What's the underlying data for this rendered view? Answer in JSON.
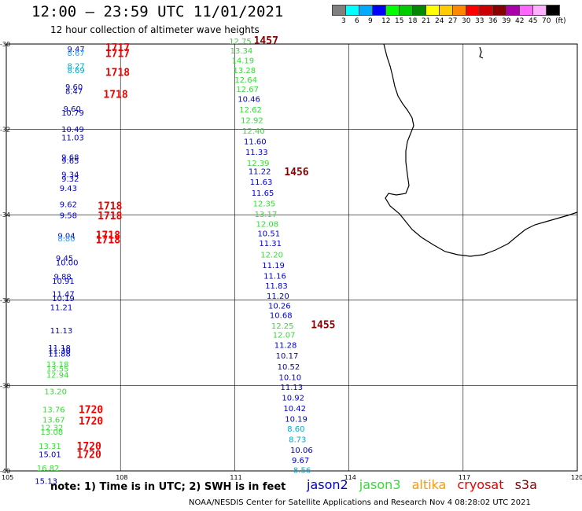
{
  "header": {
    "title": "12:00 – 23:59 UTC 11/01/2021",
    "subtitle": "12 hour collection of altimeter wave heights"
  },
  "legend": {
    "colors": [
      "#808080",
      "#00ffff",
      "#00aaff",
      "#0000ff",
      "#00ff00",
      "#00cc00",
      "#008800",
      "#ffff00",
      "#ffcc00",
      "#ff8800",
      "#ff0000",
      "#cc0000",
      "#880000",
      "#aa00aa",
      "#ff66ff",
      "#ffb0ff",
      "#000000"
    ],
    "labels": [
      "3",
      "6",
      "9",
      "12",
      "15",
      "18",
      "21",
      "24",
      "27",
      "30",
      "33",
      "36",
      "39",
      "42",
      "45",
      "70",
      "(ft)"
    ]
  },
  "map": {
    "lat_ticks": [
      "-30",
      "-32",
      "-34",
      "-36",
      "-38",
      "-40"
    ],
    "lon_ticks": [
      "105",
      "108",
      "111",
      "114",
      "117",
      "120"
    ]
  },
  "mission_colors": {
    "jason2": "#0000cc",
    "jason3": "#33dd33",
    "altika": "#ff9900",
    "cryosat": "#ee0000",
    "s3a": "#880000",
    "cyan": "#00aacc",
    "lightblue": "#3399ff"
  },
  "observations": [
    {
      "text": "9.47",
      "lon": 106.6,
      "lat": -30.18,
      "m": "jason2"
    },
    {
      "text": "8.67",
      "lon": 106.6,
      "lat": -30.28,
      "m": "lightblue"
    },
    {
      "text": "8.27",
      "lon": 106.6,
      "lat": -30.58,
      "m": "cyan"
    },
    {
      "text": "8.69",
      "lon": 106.6,
      "lat": -30.68,
      "m": "cyan"
    },
    {
      "text": "9.60",
      "lon": 106.55,
      "lat": -31.07,
      "m": "jason2"
    },
    {
      "text": "8.47",
      "lon": 106.55,
      "lat": -31.17,
      "m": "jason2"
    },
    {
      "text": "9.60",
      "lon": 106.5,
      "lat": -31.58,
      "m": "jason2"
    },
    {
      "text": "10.79",
      "lon": 106.45,
      "lat": -31.68,
      "m": "jason2"
    },
    {
      "text": "10.49",
      "lon": 106.45,
      "lat": -32.06,
      "m": "jason2"
    },
    {
      "text": "11.03",
      "lon": 106.45,
      "lat": -32.26,
      "m": "jason2"
    },
    {
      "text": "9.68",
      "lon": 106.45,
      "lat": -32.72,
      "m": "jason2"
    },
    {
      "text": "9.65",
      "lon": 106.45,
      "lat": -32.8,
      "m": "jason2"
    },
    {
      "text": "9.34",
      "lon": 106.45,
      "lat": -33.12,
      "m": "jason2"
    },
    {
      "text": "9.32",
      "lon": 106.45,
      "lat": -33.22,
      "m": "jason2"
    },
    {
      "text": "9.43",
      "lon": 106.4,
      "lat": -33.44,
      "m": "jason2"
    },
    {
      "text": "9.62",
      "lon": 106.4,
      "lat": -33.82,
      "m": "jason2"
    },
    {
      "text": "9.58",
      "lon": 106.4,
      "lat": -34.08,
      "m": "jason2"
    },
    {
      "text": "9.04",
      "lon": 106.35,
      "lat": -34.56,
      "m": "jason2"
    },
    {
      "text": "8.80",
      "lon": 106.35,
      "lat": -34.62,
      "m": "lightblue"
    },
    {
      "text": "9.45",
      "lon": 106.3,
      "lat": -35.08,
      "m": "jason2"
    },
    {
      "text": "10.00",
      "lon": 106.3,
      "lat": -35.18,
      "m": "jason2"
    },
    {
      "text": "9.88",
      "lon": 106.25,
      "lat": -35.52,
      "m": "jason2"
    },
    {
      "text": "10.91",
      "lon": 106.2,
      "lat": -35.62,
      "m": "jason2"
    },
    {
      "text": "11.47",
      "lon": 106.2,
      "lat": -35.92,
      "m": "jason2"
    },
    {
      "text": "10.19",
      "lon": 106.2,
      "lat": -36.02,
      "m": "jason2"
    },
    {
      "text": "11.21",
      "lon": 106.15,
      "lat": -36.23,
      "m": "jason2"
    },
    {
      "text": "11.13",
      "lon": 106.15,
      "lat": -36.78,
      "m": "jason2"
    },
    {
      "text": "11.18",
      "lon": 106.1,
      "lat": -37.18,
      "m": "jason2"
    },
    {
      "text": "11.30",
      "lon": 106.1,
      "lat": -37.25,
      "m": "jason2"
    },
    {
      "text": "11.88",
      "lon": 106.1,
      "lat": -37.32,
      "m": "jason2"
    },
    {
      "text": "13.18",
      "lon": 106.05,
      "lat": -37.57,
      "m": "jason3"
    },
    {
      "text": "13.55",
      "lon": 106.05,
      "lat": -37.67,
      "m": "jason3"
    },
    {
      "text": "12.94",
      "lon": 106.05,
      "lat": -37.82,
      "m": "jason3"
    },
    {
      "text": "13.20",
      "lon": 106.0,
      "lat": -38.2,
      "m": "jason3"
    },
    {
      "text": "13.76",
      "lon": 105.95,
      "lat": -38.63,
      "m": "jason3"
    },
    {
      "text": "13.67",
      "lon": 105.95,
      "lat": -38.87,
      "m": "jason3"
    },
    {
      "text": "12.32",
      "lon": 105.9,
      "lat": -39.05,
      "m": "jason3"
    },
    {
      "text": "13.08",
      "lon": 105.9,
      "lat": -39.15,
      "m": "jason3"
    },
    {
      "text": "13.31",
      "lon": 105.85,
      "lat": -39.48,
      "m": "jason3"
    },
    {
      "text": "15.01",
      "lon": 105.85,
      "lat": -39.68,
      "m": "jason2"
    },
    {
      "text": "16.82",
      "lon": 105.8,
      "lat": -40.0,
      "m": "jason3"
    },
    {
      "text": "15.13",
      "lon": 105.75,
      "lat": -40.3,
      "m": "jason2"
    },
    {
      "text": "12.75",
      "lon": 110.85,
      "lat": -30.0,
      "m": "jason3"
    },
    {
      "text": "13.34",
      "lon": 110.88,
      "lat": -30.22,
      "m": "jason3"
    },
    {
      "text": "14.19",
      "lon": 110.92,
      "lat": -30.45,
      "m": "jason3"
    },
    {
      "text": "13.28",
      "lon": 110.96,
      "lat": -30.68,
      "m": "jason3"
    },
    {
      "text": "12.64",
      "lon": 111.0,
      "lat": -30.9,
      "m": "jason3"
    },
    {
      "text": "12.67",
      "lon": 111.04,
      "lat": -31.12,
      "m": "jason3"
    },
    {
      "text": "10.46",
      "lon": 111.08,
      "lat": -31.35,
      "m": "jason2"
    },
    {
      "text": "12.62",
      "lon": 111.12,
      "lat": -31.6,
      "m": "jason3"
    },
    {
      "text": "12.92",
      "lon": 111.16,
      "lat": -31.85,
      "m": "jason3"
    },
    {
      "text": "12.40",
      "lon": 111.2,
      "lat": -32.1,
      "m": "jason3"
    },
    {
      "text": "11.60",
      "lon": 111.24,
      "lat": -32.35,
      "m": "jason2"
    },
    {
      "text": "11.33",
      "lon": 111.28,
      "lat": -32.6,
      "m": "jason2"
    },
    {
      "text": "12.39",
      "lon": 111.32,
      "lat": -32.85,
      "m": "jason3"
    },
    {
      "text": "11.22",
      "lon": 111.36,
      "lat": -33.05,
      "m": "jason2"
    },
    {
      "text": "11.63",
      "lon": 111.4,
      "lat": -33.3,
      "m": "jason2"
    },
    {
      "text": "11.65",
      "lon": 111.44,
      "lat": -33.55,
      "m": "jason2"
    },
    {
      "text": "12.35",
      "lon": 111.48,
      "lat": -33.8,
      "m": "jason3"
    },
    {
      "text": "13.17",
      "lon": 111.52,
      "lat": -34.05,
      "m": "jason3"
    },
    {
      "text": "12.08",
      "lon": 111.56,
      "lat": -34.28,
      "m": "jason3"
    },
    {
      "text": "10.51",
      "lon": 111.6,
      "lat": -34.5,
      "m": "jason2"
    },
    {
      "text": "11.31",
      "lon": 111.64,
      "lat": -34.73,
      "m": "jason2"
    },
    {
      "text": "12.20",
      "lon": 111.68,
      "lat": -35.0,
      "m": "jason3"
    },
    {
      "text": "11.19",
      "lon": 111.72,
      "lat": -35.25,
      "m": "jason2"
    },
    {
      "text": "11.16",
      "lon": 111.76,
      "lat": -35.5,
      "m": "jason2"
    },
    {
      "text": "11.83",
      "lon": 111.8,
      "lat": -35.73,
      "m": "jason2"
    },
    {
      "text": "11.20",
      "lon": 111.84,
      "lat": -35.97,
      "m": "jason2"
    },
    {
      "text": "10.26",
      "lon": 111.88,
      "lat": -36.2,
      "m": "jason2"
    },
    {
      "text": "10.68",
      "lon": 111.92,
      "lat": -36.42,
      "m": "jason2"
    },
    {
      "text": "12.25",
      "lon": 111.96,
      "lat": -36.67,
      "m": "jason3"
    },
    {
      "text": "12.07",
      "lon": 112.0,
      "lat": -36.88,
      "m": "jason3"
    },
    {
      "text": "11.28",
      "lon": 112.04,
      "lat": -37.12,
      "m": "jason2"
    },
    {
      "text": "10.17",
      "lon": 112.08,
      "lat": -37.37,
      "m": "jason2"
    },
    {
      "text": "10.52",
      "lon": 112.12,
      "lat": -37.62,
      "m": "jason2"
    },
    {
      "text": "10.10",
      "lon": 112.16,
      "lat": -37.87,
      "m": "jason2"
    },
    {
      "text": "11.13",
      "lon": 112.2,
      "lat": -38.1,
      "m": "jason2"
    },
    {
      "text": "10.92",
      "lon": 112.24,
      "lat": -38.35,
      "m": "jason2"
    },
    {
      "text": "10.42",
      "lon": 112.28,
      "lat": -38.6,
      "m": "jason2"
    },
    {
      "text": "10.19",
      "lon": 112.32,
      "lat": -38.85,
      "m": "jason2"
    },
    {
      "text": "8.60",
      "lon": 112.38,
      "lat": -39.08,
      "m": "cyan"
    },
    {
      "text": "8.73",
      "lon": 112.42,
      "lat": -39.33,
      "m": "cyan"
    },
    {
      "text": "10.06",
      "lon": 112.46,
      "lat": -39.58,
      "m": "jason2"
    },
    {
      "text": "9.67",
      "lon": 112.5,
      "lat": -39.82,
      "m": "jason2"
    },
    {
      "text": "8.56",
      "lon": 112.54,
      "lat": -40.05,
      "m": "cyan"
    }
  ],
  "times": [
    {
      "text": "1717",
      "lon": 107.6,
      "lat": -30.17,
      "m": "cryosat"
    },
    {
      "text": "1717",
      "lon": 107.6,
      "lat": -30.3,
      "m": "cryosat"
    },
    {
      "text": "1718",
      "lon": 107.6,
      "lat": -30.75,
      "m": "cryosat"
    },
    {
      "text": "1718",
      "lon": 107.55,
      "lat": -31.26,
      "m": "cryosat"
    },
    {
      "text": "1718",
      "lon": 107.4,
      "lat": -33.88,
      "m": "cryosat"
    },
    {
      "text": "1718",
      "lon": 107.4,
      "lat": -34.11,
      "m": "cryosat"
    },
    {
      "text": "1718",
      "lon": 107.35,
      "lat": -34.56,
      "m": "cryosat"
    },
    {
      "text": "1718",
      "lon": 107.35,
      "lat": -34.67,
      "m": "cryosat"
    },
    {
      "text": "1720",
      "lon": 106.9,
      "lat": -38.65,
      "m": "cryosat"
    },
    {
      "text": "1720",
      "lon": 106.9,
      "lat": -38.91,
      "m": "cryosat"
    },
    {
      "text": "1720",
      "lon": 106.85,
      "lat": -39.5,
      "m": "cryosat"
    },
    {
      "text": "1720",
      "lon": 106.85,
      "lat": -39.7,
      "m": "cryosat"
    },
    {
      "text": "1457",
      "lon": 111.5,
      "lat": -30.0,
      "m": "s3a"
    },
    {
      "text": "1456",
      "lon": 112.3,
      "lat": -33.08,
      "m": "s3a"
    },
    {
      "text": "1455",
      "lon": 113.0,
      "lat": -36.66,
      "m": "s3a"
    }
  ],
  "footer": {
    "note": "note:  1) Time is in UTC;  2) SWH is in feet",
    "missions": [
      "jason2",
      "jason3",
      "altika",
      "cryosat",
      "s3a"
    ],
    "credit": "NOAA/NESDIS Center for Satellite Applications and Research    Nov  4 08:28:02 UTC 2021"
  }
}
